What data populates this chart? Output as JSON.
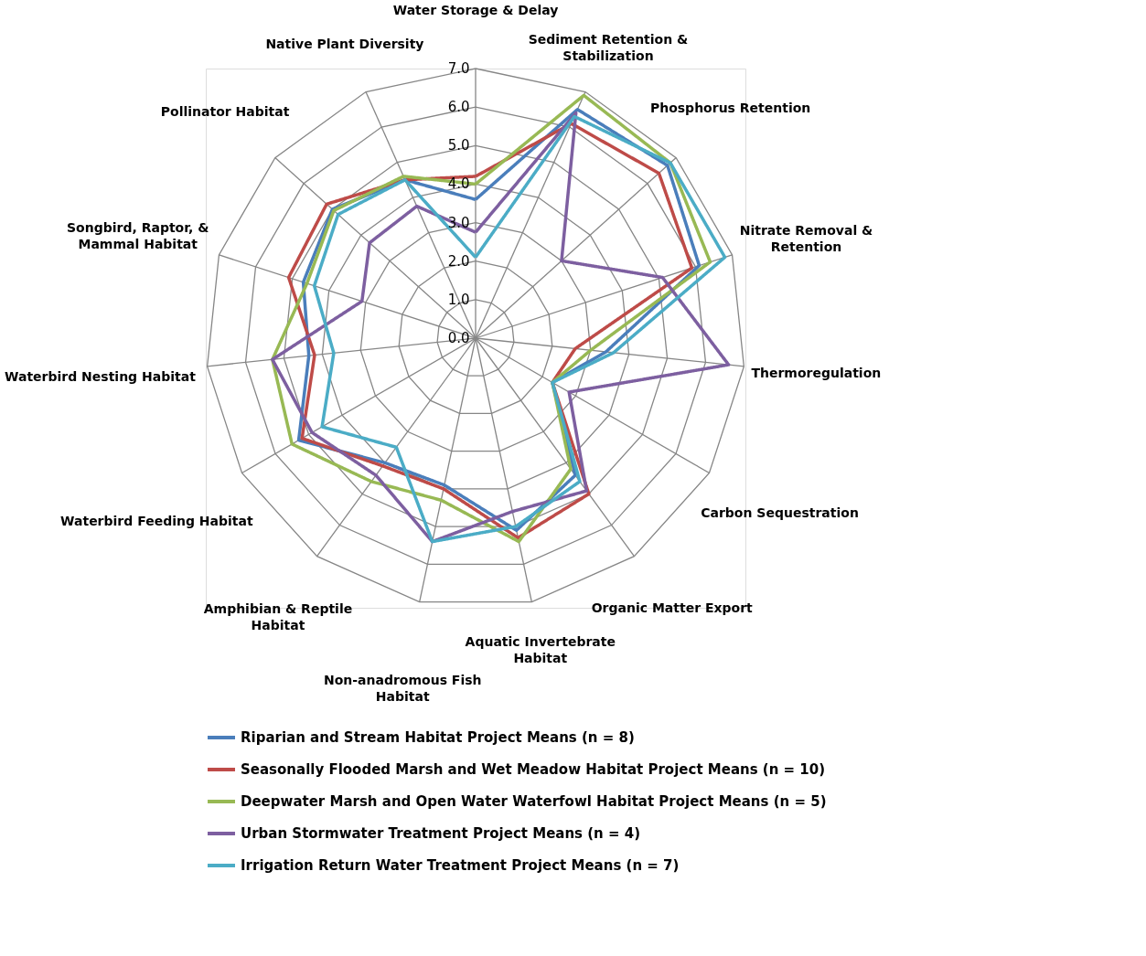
{
  "chart_data": {
    "type": "radar",
    "categories": [
      "Water Storage & Delay",
      "Sediment Retention & Stabilization",
      "Phosphorus Retention",
      "Nitrate Removal & Retention",
      "Thermoregulation",
      "Carbon Sequestration",
      "Organic Matter Export",
      "Aquatic Invertebrate Habitat",
      "Non-anadromous Fish Habitat",
      "Amphibian & Reptile Habitat",
      "Waterbird Feeding Habitat",
      "Waterbird Nesting Habitat",
      "Songbird, Raptor, & Mammal Habitat",
      "Pollinator Habitat",
      "Native Plant Diversity"
    ],
    "ylim": [
      0,
      7
    ],
    "yticks": [
      {
        "value": 0,
        "label": "0.0"
      },
      {
        "value": 1,
        "label": "1.0"
      },
      {
        "value": 2,
        "label": "2.0"
      },
      {
        "value": 3,
        "label": "3.0"
      },
      {
        "value": 4,
        "label": "4.0"
      },
      {
        "value": 5,
        "label": "5.0"
      },
      {
        "value": 6,
        "label": "6.0"
      },
      {
        "value": 7,
        "label": "7.0"
      }
    ],
    "grid": true,
    "legend": "bottom",
    "marker": "none",
    "line_style": "solid",
    "series": [
      {
        "name": "Riparian and Stream Habitat Project Means (n = 8)",
        "color": "#4a7ebb",
        "values": [
          3.6,
          6.5,
          6.7,
          6.1,
          3.4,
          2.3,
          4.4,
          5.1,
          3.9,
          4.0,
          5.3,
          4.35,
          4.7,
          5.0,
          4.5
        ]
      },
      {
        "name": "Seasonally Flooded Marsh and Wet Meadow Habitat Project Means (n = 10)",
        "color": "#be4b48",
        "values": [
          4.2,
          6.1,
          6.4,
          5.9,
          2.6,
          2.3,
          5.0,
          5.3,
          4.0,
          4.1,
          5.2,
          4.2,
          5.1,
          5.2,
          4.5
        ]
      },
      {
        "name": "Deepwater Marsh and Open Water Waterfowl Habitat Project Means (n = 5)",
        "color": "#98b954",
        "values": [
          4.0,
          6.9,
          6.8,
          6.4,
          3.0,
          2.3,
          4.2,
          5.4,
          4.3,
          4.6,
          5.5,
          5.3,
          4.6,
          4.95,
          4.6
        ]
      },
      {
        "name": "Urban Stormwater Treatment Project Means (n = 4)",
        "color": "#7d5fa0",
        "values": [
          2.75,
          6.4,
          3.0,
          5.1,
          6.6,
          2.8,
          4.9,
          4.6,
          5.4,
          4.4,
          4.9,
          5.3,
          3.1,
          3.7,
          3.75
        ]
      },
      {
        "name": "Irrigation Return Water Treatment Project Means (n = 7)",
        "color": "#4bacc6",
        "values": [
          2.1,
          6.3,
          6.8,
          6.8,
          3.6,
          2.3,
          4.6,
          5.0,
          5.4,
          3.5,
          4.6,
          3.7,
          4.4,
          4.8,
          4.5
        ]
      }
    ]
  }
}
